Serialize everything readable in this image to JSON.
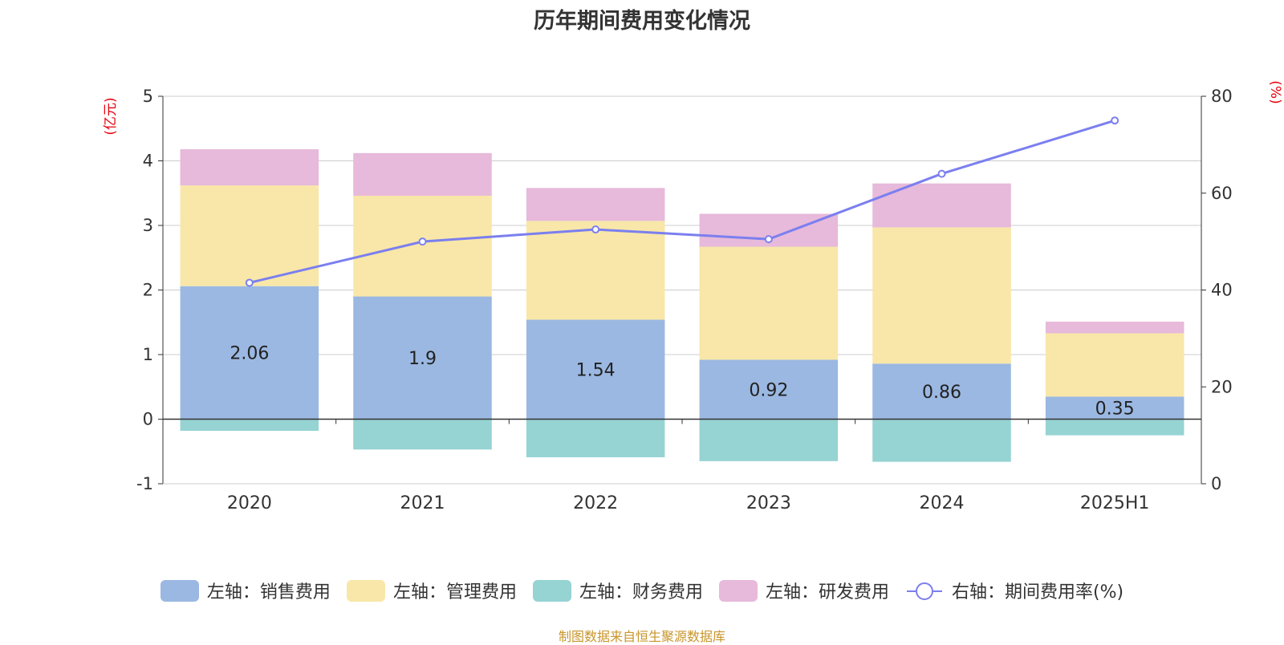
{
  "title": "历年期间费用变化情况",
  "source": "制图数据来自恒生聚源数据库",
  "colors": {
    "sales": "#9bb8e2",
    "admin": "#f8e7a8",
    "finance": "#96d3d3",
    "rd": "#e7b9da",
    "rate": "#7b7fef",
    "axis_unit": "#e8000b",
    "source": "#c8952b",
    "grid": "#cccccc",
    "axis": "#333333",
    "text": "#333333"
  },
  "chart_data": {
    "type": "bar",
    "stacked": true,
    "categories": [
      "2020",
      "2021",
      "2022",
      "2023",
      "2024",
      "2025H1"
    ],
    "left_axis": {
      "unit": "(亿元)",
      "ylim": [
        -1,
        5
      ],
      "ticks": [
        "5",
        "4",
        "3",
        "2",
        "1",
        "0",
        "-1"
      ]
    },
    "right_axis": {
      "unit": "(%)",
      "ylim": [
        0,
        80
      ],
      "ticks": [
        "80",
        "60",
        "40",
        "20",
        "0"
      ]
    },
    "series": [
      {
        "name": "左轴：销售费用",
        "key": "sales",
        "axis": "left",
        "type": "bar",
        "values": [
          2.06,
          1.9,
          1.54,
          0.92,
          0.86,
          0.35
        ],
        "labels": [
          "2.06",
          "1.9",
          "1.54",
          "0.92",
          "0.86",
          "0.35"
        ]
      },
      {
        "name": "左轴：管理费用",
        "key": "admin",
        "axis": "left",
        "type": "bar",
        "values": [
          1.56,
          1.56,
          1.53,
          1.75,
          2.11,
          0.98
        ]
      },
      {
        "name": "左轴：财务费用",
        "key": "finance",
        "axis": "left",
        "type": "bar",
        "values": [
          -0.18,
          -0.47,
          -0.59,
          -0.65,
          -0.66,
          -0.25
        ]
      },
      {
        "name": "左轴：研发费用",
        "key": "rd",
        "axis": "left",
        "type": "bar",
        "values": [
          0.56,
          0.66,
          0.51,
          0.51,
          0.68,
          0.18
        ]
      },
      {
        "name": "右轴：期间费用率(%)",
        "key": "rate",
        "axis": "right",
        "type": "line",
        "values": [
          41.5,
          50.0,
          52.5,
          50.5,
          64.0,
          75.0
        ]
      }
    ],
    "grid": true,
    "legend_position": "bottom"
  }
}
